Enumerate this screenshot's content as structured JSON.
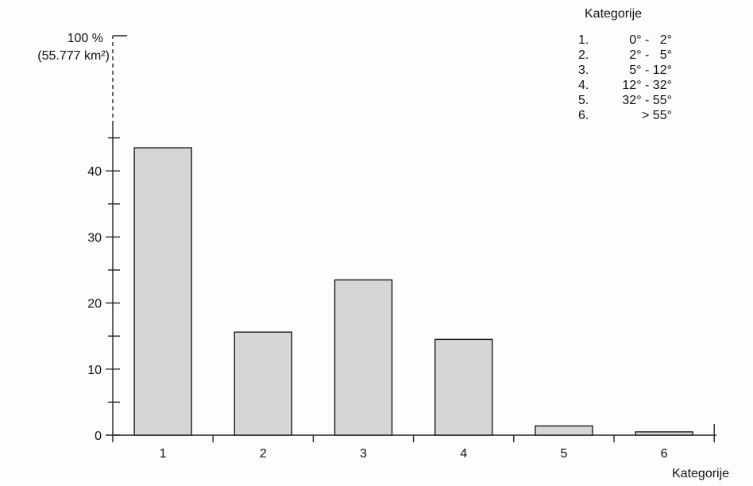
{
  "chart_data": {
    "type": "bar",
    "categories": [
      "1",
      "2",
      "3",
      "4",
      "5",
      "6"
    ],
    "values": [
      43.5,
      15.6,
      23.5,
      14.5,
      1.4,
      0.5
    ],
    "y_ticks": [
      "0",
      "10",
      "20",
      "30",
      "40"
    ],
    "ylim": [
      0,
      100
    ],
    "y_top_label": "100 %",
    "y_top_sublabel": "(55.777 km²)",
    "xlabel": "Kategorije",
    "grid": false,
    "bar_color": "#d6d6d6",
    "legend": {
      "title": "Kategorije",
      "placement": "top-right",
      "items": [
        {
          "num": "1.",
          "range": "0° -   2°"
        },
        {
          "num": "2.",
          "range": "2° -   5°"
        },
        {
          "num": "3.",
          "range": "5° - 12°"
        },
        {
          "num": "4.",
          "range": "12° - 32°"
        },
        {
          "num": "5.",
          "range": "32° - 55°"
        },
        {
          "num": "6.",
          "range": "> 55°"
        }
      ]
    }
  }
}
